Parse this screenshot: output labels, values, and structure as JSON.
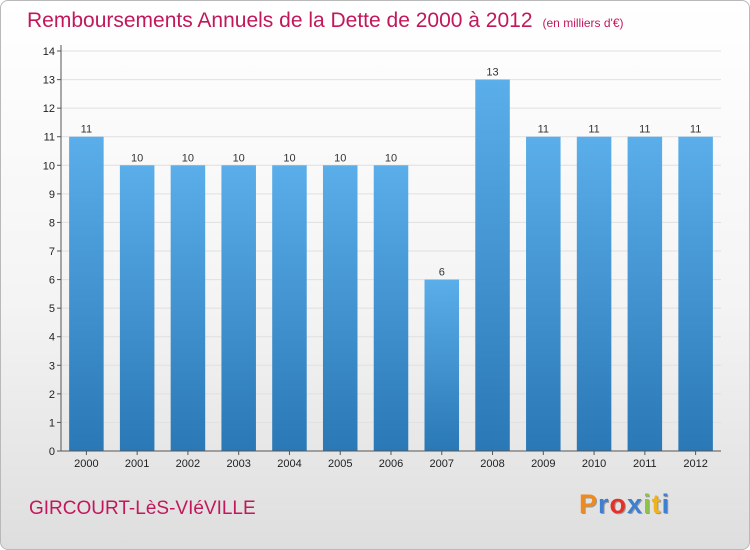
{
  "header": {
    "title": "Remboursements Annuels de la Dette de 2000 à 2012",
    "subtitle": "(en milliers d'€)"
  },
  "footer": {
    "commune": "GIRCOURT-LèS-VIéVILLE",
    "logo": "Proxiti",
    "logo_colors": [
      "#f08a1c",
      "#3d7fd1",
      "#e5302a",
      "#3d7fd1",
      "#8cc63f",
      "#f0b31c",
      "#3d7fd1"
    ]
  },
  "colors": {
    "bar_top": "#5aaee9",
    "bar_bottom": "#2a78b6",
    "grid": "#e0e0e0",
    "axis": "#555555",
    "title": "#c2185b"
  },
  "chart_data": {
    "type": "bar",
    "title": "Remboursements Annuels de la Dette de 2000 à 2012",
    "subtitle": "(en milliers d'€)",
    "categories": [
      "2000",
      "2001",
      "2002",
      "2003",
      "2004",
      "2005",
      "2006",
      "2007",
      "2008",
      "2009",
      "2010",
      "2011",
      "2012"
    ],
    "values": [
      11,
      10,
      10,
      10,
      10,
      10,
      10,
      6,
      13,
      11,
      11,
      11,
      11
    ],
    "data_labels": [
      "11",
      "10",
      "10",
      "10",
      "10",
      "10",
      "10",
      "6",
      "13",
      "11",
      "11",
      "11",
      "11"
    ],
    "y_ticks": [
      "0",
      "1",
      "2",
      "3",
      "4",
      "5",
      "6",
      "7",
      "8",
      "9",
      "10",
      "11",
      "12",
      "13",
      "14"
    ],
    "ylim": [
      0,
      14
    ],
    "grid": true,
    "legend": "none",
    "xlabel": "",
    "ylabel": ""
  }
}
